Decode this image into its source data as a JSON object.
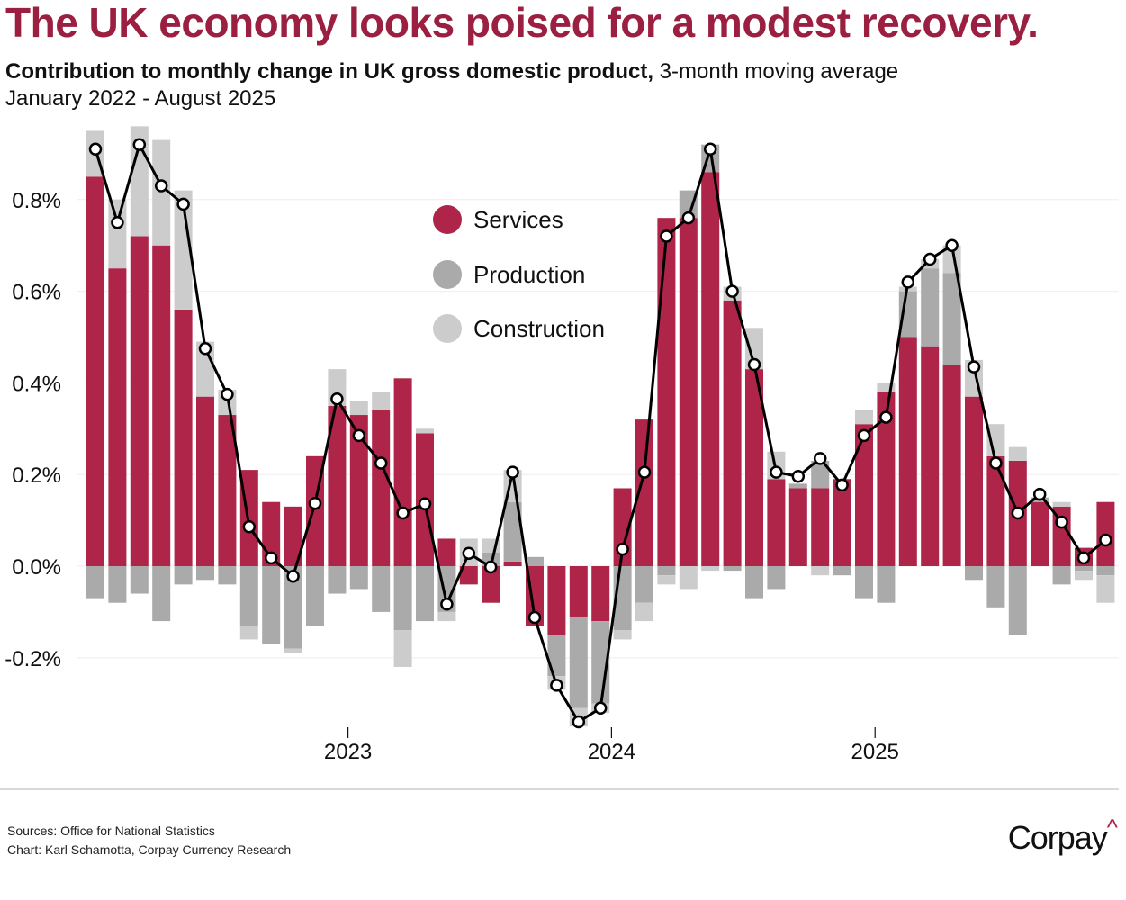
{
  "title": "The UK economy looks poised for a modest recovery.",
  "subtitle_bold": "Contribution to monthly change in UK gross domestic product,",
  "subtitle_normal": " 3-month moving average",
  "date_range": "January 2022 - August 2025",
  "footer": {
    "sources": "Sources: Office for National Statistics",
    "credit": "Chart: Karl Schamotta, Corpay Currency Research",
    "logo_text": "Corpay",
    "logo_mark": "^"
  },
  "colors": {
    "title": "#9b1f40",
    "services": "#ae2549",
    "production": "#aaaaaa",
    "construction": "#cccccc",
    "line": "#000000"
  },
  "chart_data": {
    "type": "bar",
    "stacked": true,
    "ylim": [
      -0.36,
      0.97
    ],
    "yticks": [
      -0.2,
      0.0,
      0.2,
      0.4,
      0.6,
      0.8
    ],
    "ytick_labels": [
      "-0.2%",
      "0.0%",
      "0.2%",
      "0.4%",
      "0.6%",
      "0.8%"
    ],
    "xtick_labels": [
      "2023",
      "2024",
      "2025"
    ],
    "xtick_positions": [
      "2023-01",
      "2024-01",
      "2025-01"
    ],
    "grid": true,
    "legend_placement": "top-center",
    "x": [
      "2022-01",
      "2022-02",
      "2022-03",
      "2022-04",
      "2022-05",
      "2022-06",
      "2022-07",
      "2022-08",
      "2022-09",
      "2022-10",
      "2022-11",
      "2022-12",
      "2023-01",
      "2023-02",
      "2023-03",
      "2023-04",
      "2023-05",
      "2023-06",
      "2023-07",
      "2023-08",
      "2023-09",
      "2023-10",
      "2023-11",
      "2023-12",
      "2024-01",
      "2024-02",
      "2024-03",
      "2024-04",
      "2024-05",
      "2024-06",
      "2024-07",
      "2024-08",
      "2024-09",
      "2024-10",
      "2024-11",
      "2024-12",
      "2025-01",
      "2025-02",
      "2025-03",
      "2025-04",
      "2025-05",
      "2025-06",
      "2025-07",
      "2025-08",
      "2025-09",
      "2025-10",
      "2025-11"
    ],
    "series": [
      {
        "name": "Services",
        "type": "bar",
        "values": [
          0.85,
          0.65,
          0.72,
          0.7,
          0.56,
          0.37,
          0.33,
          0.21,
          0.14,
          0.13,
          0.24,
          0.35,
          0.33,
          0.34,
          0.41,
          0.29,
          0.06,
          -0.04,
          -0.08,
          0.01,
          -0.13,
          -0.15,
          -0.11,
          -0.12,
          0.17,
          0.32,
          0.76,
          0.76,
          0.86,
          0.58,
          0.43,
          0.19,
          0.17,
          0.17,
          0.19,
          0.31,
          0.38,
          0.5,
          0.48,
          0.44,
          0.37,
          0.24,
          0.23,
          0.14,
          0.13,
          0.04,
          0.14
        ]
      },
      {
        "name": "Production",
        "type": "bar",
        "values": [
          -0.07,
          -0.08,
          -0.06,
          -0.12,
          -0.04,
          -0.03,
          -0.04,
          -0.13,
          -0.17,
          -0.18,
          -0.13,
          -0.06,
          -0.05,
          -0.1,
          -0.14,
          -0.12,
          -0.1,
          0,
          0.03,
          0.13,
          0.02,
          -0.09,
          -0.2,
          -0.18,
          -0.14,
          -0.08,
          -0.02,
          0.06,
          0.06,
          -0.01,
          -0.07,
          -0.05,
          0.01,
          0.06,
          -0.02,
          -0.07,
          -0.08,
          0.1,
          0.17,
          0.2,
          -0.03,
          -0.09,
          -0.15,
          0.01,
          -0.04,
          -0.01,
          -0.02
        ]
      },
      {
        "name": "Construction",
        "type": "bar",
        "values": [
          0.1,
          0.15,
          0.24,
          0.23,
          0.26,
          0.12,
          0.055,
          -0.03,
          0,
          -0.01,
          0,
          0.08,
          0.03,
          0.04,
          -0.08,
          0.01,
          -0.02,
          0.06,
          0.03,
          0.07,
          0,
          -0.03,
          -0.04,
          -0.02,
          -0.02,
          -0.04,
          -0.02,
          -0.05,
          -0.01,
          0.03,
          0.09,
          0.06,
          0,
          -0.02,
          0,
          0.03,
          0.02,
          0.01,
          0.02,
          0.06,
          0.08,
          0.07,
          0.03,
          0,
          0.01,
          -0.02,
          -0.06
        ]
      },
      {
        "type": "line",
        "values": [
          0.91,
          0.75,
          0.92,
          0.83,
          0.79,
          0.475,
          0.375,
          0.086,
          0.018,
          -0.022,
          0.137,
          0.365,
          0.285,
          0.225,
          0.116,
          0.136,
          -0.083,
          0.028,
          -0.002,
          0.205,
          -0.112,
          -0.26,
          -0.34,
          -0.31,
          0.037,
          0.205,
          0.72,
          0.76,
          0.91,
          0.6,
          0.44,
          0.205,
          0.196,
          0.235,
          0.177,
          0.285,
          0.325,
          0.62,
          0.67,
          0.7,
          0.435,
          0.225,
          0.116,
          0.157,
          0.096,
          0.018,
          0.057
        ]
      }
    ],
    "legend": [
      "Services",
      "Production",
      "Construction"
    ]
  }
}
